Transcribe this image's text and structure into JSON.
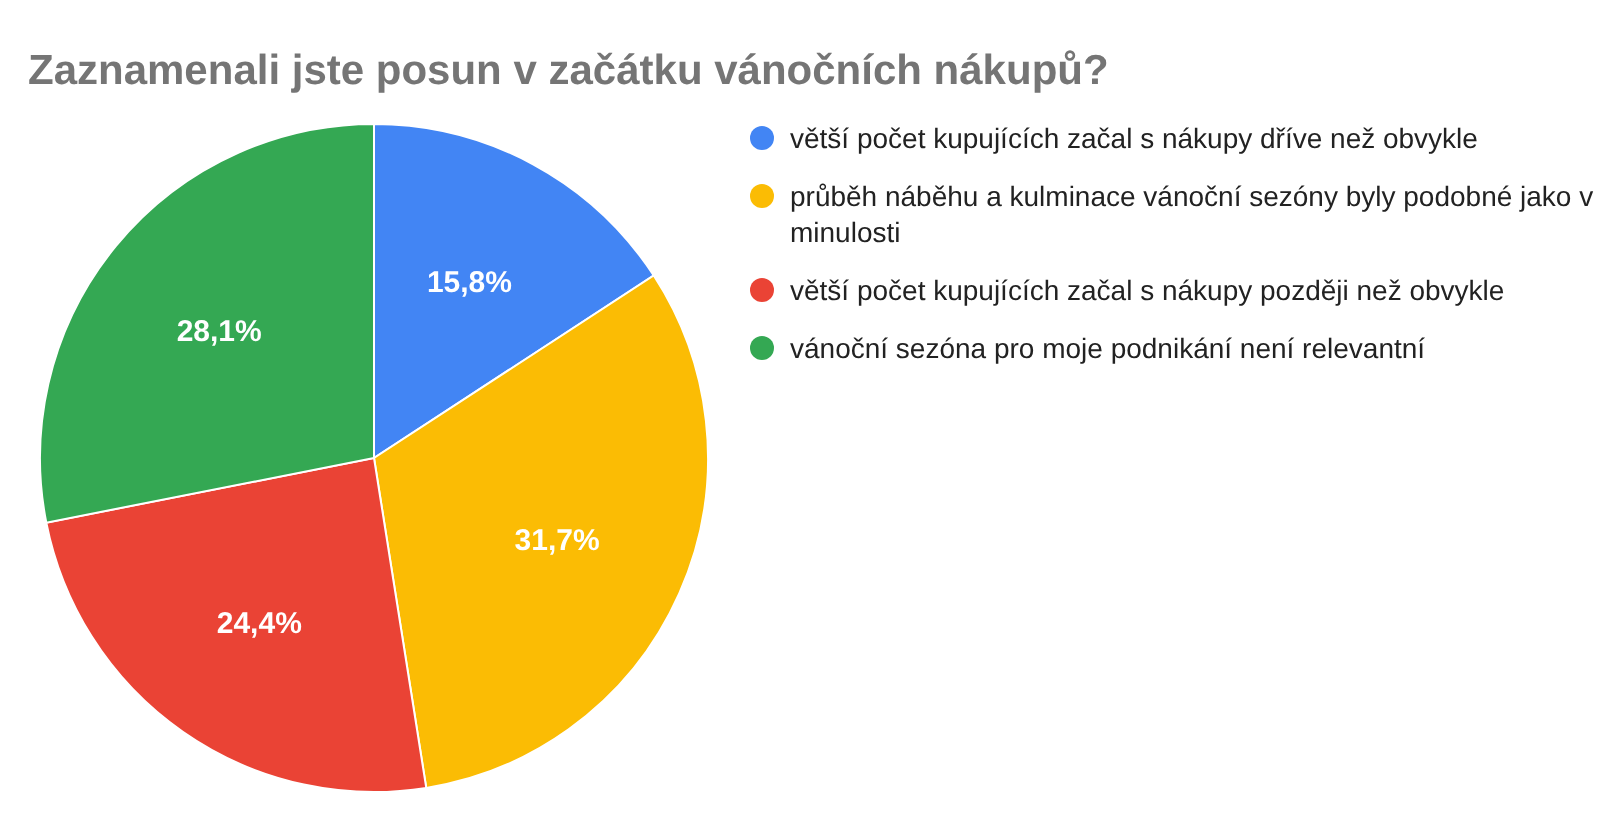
{
  "chart_data": {
    "type": "pie",
    "title": "Zaznamenali jste posun v začátku vánočních nákupů?",
    "categories": [
      "větší počet kupujících začal s nákupy dříve než obvykle",
      "průběh náběhu a kulminace vánoční sezóny byly podobné jako v minulosti",
      "větší počet kupujících začal s nákupy později než obvykle",
      "vánoční sezóna pro moje podnikání není relevantní"
    ],
    "values": [
      15.8,
      31.7,
      24.4,
      28.1
    ],
    "colors": [
      "#4285f4",
      "#fbbc04",
      "#ea4335",
      "#34a853"
    ],
    "value_labels": [
      "15,8%",
      "31,7%",
      "24,4%",
      "28,1%"
    ],
    "legend": "right"
  }
}
